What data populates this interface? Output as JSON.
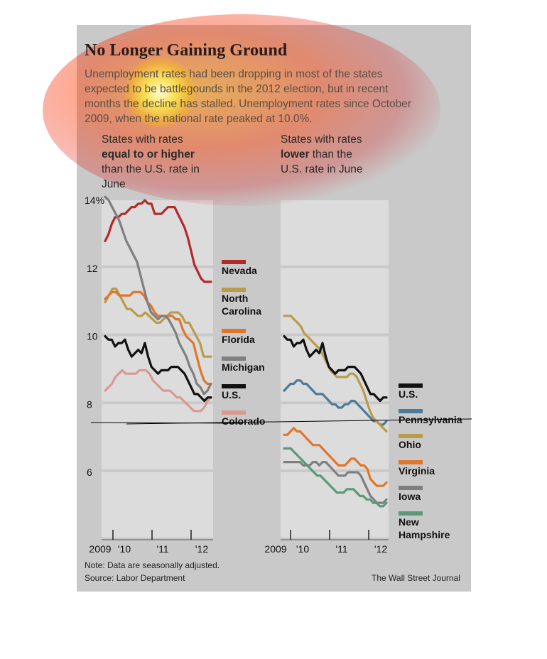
{
  "title": "No Longer Gaining Ground",
  "subtitle": "Unemployment rates had been dropping in most of the states expected to be battlegounds in the 2012 election, but in recent months the decline has stalled. Unemployment rates since October 2009, when the national rate peaked at 10.0%.",
  "left_panel": {
    "heading_pre": "States with rates",
    "heading_bold": "equal to or higher",
    "heading_post": "than the U.S. rate in June"
  },
  "right_panel": {
    "heading_pre": "States with rates",
    "heading_bold": "lower",
    "heading_mid": "than the",
    "heading_post": "U.S. rate in June"
  },
  "note": "Note: Data are seasonally adjusted.",
  "source": "Source: Labor Department",
  "credit": "The Wall Street Journal",
  "colors": {
    "background": "#c9c9c9",
    "plot_band": "#dcdcdc",
    "Nevada": "#b22a2a",
    "North Carolina": "#b89c4c",
    "Florida": "#e0762c",
    "Michigan": "#7f7f7f",
    "U.S.": "#111111",
    "Colorado": "#d89a90",
    "Pennsylvania": "#4d7a9a",
    "Ohio": "#b89c4c",
    "Virginia": "#e0762c",
    "Iowa": "#7f7f7f",
    "New Hampshire": "#5a9a7a"
  },
  "chart_data": [
    {
      "type": "line",
      "title": "States with rates equal to or higher than the U.S. rate in June",
      "x_ticks": [
        "2009",
        "'10",
        "'11",
        "'12"
      ],
      "y_ticks": [
        "14%",
        "12",
        "10",
        "8",
        "6"
      ],
      "ylim": [
        4,
        14
      ],
      "x_start": "2009-10",
      "x_end": "2012-06",
      "series": [
        {
          "name": "Nevada",
          "values": [
            12.8,
            13.0,
            13.3,
            13.5,
            13.5,
            13.6,
            13.6,
            13.7,
            13.8,
            13.8,
            13.9,
            13.9,
            14.0,
            13.9,
            13.9,
            13.6,
            13.6,
            13.6,
            13.7,
            13.8,
            13.8,
            13.8,
            13.6,
            13.4,
            13.2,
            12.9,
            12.5,
            12.1,
            11.9,
            11.7,
            11.6,
            11.6,
            11.6
          ]
        },
        {
          "name": "North Carolina",
          "values": [
            11.0,
            11.2,
            11.4,
            11.4,
            11.2,
            11.0,
            10.8,
            10.8,
            10.7,
            10.6,
            10.6,
            10.7,
            10.6,
            10.5,
            10.4,
            10.4,
            10.5,
            10.6,
            10.7,
            10.7,
            10.7,
            10.6,
            10.4,
            10.4,
            10.2,
            10.0,
            9.8,
            9.4,
            9.4,
            9.4
          ]
        },
        {
          "name": "Florida",
          "values": [
            11.1,
            11.2,
            11.3,
            11.3,
            11.2,
            11.2,
            11.2,
            11.2,
            11.3,
            11.3,
            11.3,
            11.2,
            11.0,
            10.9,
            10.7,
            10.6,
            10.6,
            10.6,
            10.6,
            10.6,
            10.5,
            10.5,
            10.2,
            10.0,
            9.9,
            9.8,
            9.4,
            9.0,
            8.7,
            8.6,
            8.6
          ]
        },
        {
          "name": "Michigan",
          "values": [
            14.1,
            14.0,
            13.8,
            13.6,
            13.4,
            13.1,
            12.8,
            12.6,
            12.4,
            12.2,
            11.8,
            11.4,
            11.0,
            10.7,
            10.6,
            10.5,
            10.6,
            10.6,
            10.5,
            10.3,
            10.1,
            9.8,
            9.6,
            9.4,
            9.1,
            8.9,
            8.6,
            8.5,
            8.3,
            8.4,
            8.6
          ]
        },
        {
          "name": "U.S.",
          "values": [
            10.0,
            9.9,
            9.9,
            9.7,
            9.8,
            9.8,
            9.9,
            9.6,
            9.4,
            9.5,
            9.6,
            9.5,
            9.8,
            9.4,
            9.1,
            9.0,
            8.9,
            9.0,
            9.0,
            9.0,
            9.1,
            9.1,
            9.1,
            9.0,
            8.9,
            8.7,
            8.5,
            8.3,
            8.3,
            8.2,
            8.1,
            8.2,
            8.2
          ]
        },
        {
          "name": "Colorado",
          "values": [
            8.4,
            8.5,
            8.6,
            8.8,
            8.9,
            9.0,
            8.9,
            8.9,
            8.9,
            8.9,
            9.0,
            9.0,
            9.0,
            8.9,
            8.7,
            8.6,
            8.5,
            8.4,
            8.4,
            8.4,
            8.3,
            8.2,
            8.2,
            8.1,
            8.0,
            7.9,
            7.8,
            7.8,
            7.8,
            7.9,
            8.1,
            8.2
          ]
        }
      ]
    },
    {
      "type": "line",
      "title": "States with rates lower than the U.S. rate in June",
      "x_ticks": [
        "2009",
        "'10",
        "'11",
        "'12"
      ],
      "y_ticks": [
        "14%",
        "12",
        "10",
        "8",
        "6"
      ],
      "ylim": [
        4,
        14
      ],
      "x_start": "2009-10",
      "x_end": "2012-06",
      "series": [
        {
          "name": "U.S.",
          "values": [
            10.0,
            9.9,
            9.9,
            9.7,
            9.8,
            9.8,
            9.9,
            9.6,
            9.4,
            9.5,
            9.6,
            9.5,
            9.8,
            9.4,
            9.1,
            9.0,
            8.9,
            9.0,
            9.0,
            9.0,
            9.1,
            9.1,
            9.1,
            9.0,
            8.9,
            8.7,
            8.5,
            8.3,
            8.3,
            8.2,
            8.1,
            8.2,
            8.2
          ]
        },
        {
          "name": "Pennsylvania",
          "values": [
            8.4,
            8.5,
            8.6,
            8.6,
            8.7,
            8.7,
            8.6,
            8.6,
            8.5,
            8.4,
            8.3,
            8.3,
            8.3,
            8.2,
            8.1,
            8.0,
            8.0,
            7.9,
            7.9,
            8.0,
            8.0,
            8.1,
            8.1,
            8.0,
            7.9,
            7.8,
            7.7,
            7.6,
            7.5,
            7.5,
            7.4,
            7.4,
            7.5
          ]
        },
        {
          "name": "Ohio",
          "values": [
            10.6,
            10.6,
            10.6,
            10.5,
            10.4,
            10.3,
            10.1,
            10.0,
            9.9,
            9.8,
            9.7,
            9.6,
            9.4,
            9.2,
            9.0,
            8.9,
            8.8,
            8.8,
            8.8,
            8.8,
            8.9,
            8.9,
            8.8,
            8.6,
            8.4,
            8.1,
            7.8,
            7.6,
            7.5,
            7.4,
            7.3,
            7.2
          ]
        },
        {
          "name": "Virginia",
          "values": [
            7.1,
            7.1,
            7.2,
            7.3,
            7.2,
            7.2,
            7.1,
            7.0,
            6.9,
            6.8,
            6.8,
            6.8,
            6.7,
            6.6,
            6.5,
            6.4,
            6.3,
            6.2,
            6.2,
            6.2,
            6.3,
            6.4,
            6.4,
            6.3,
            6.2,
            6.2,
            6.1,
            5.8,
            5.7,
            5.6,
            5.6,
            5.6,
            5.7
          ]
        },
        {
          "name": "Iowa",
          "values": [
            6.3,
            6.3,
            6.3,
            6.3,
            6.3,
            6.3,
            6.2,
            6.2,
            6.2,
            6.3,
            6.3,
            6.2,
            6.3,
            6.3,
            6.2,
            6.1,
            6.0,
            5.9,
            5.9,
            5.9,
            6.0,
            6.0,
            6.0,
            6.0,
            5.9,
            5.7,
            5.5,
            5.3,
            5.2,
            5.1,
            5.1,
            5.1,
            5.2
          ]
        },
        {
          "name": "New Hampshire",
          "values": [
            6.7,
            6.7,
            6.7,
            6.6,
            6.5,
            6.4,
            6.3,
            6.2,
            6.1,
            6.0,
            5.9,
            5.9,
            5.8,
            5.7,
            5.6,
            5.5,
            5.4,
            5.4,
            5.4,
            5.5,
            5.5,
            5.5,
            5.4,
            5.3,
            5.3,
            5.2,
            5.2,
            5.1,
            5.1,
            5.0,
            5.0,
            5.1
          ]
        }
      ]
    }
  ],
  "legend_left": [
    "Nevada",
    "North Carolina",
    "Florida",
    "Michigan",
    "U.S.",
    "Colorado"
  ],
  "legend_right": [
    "U.S.",
    "Pennsylvania",
    "Ohio",
    "Virginia",
    "Iowa",
    "New Hampshire"
  ]
}
